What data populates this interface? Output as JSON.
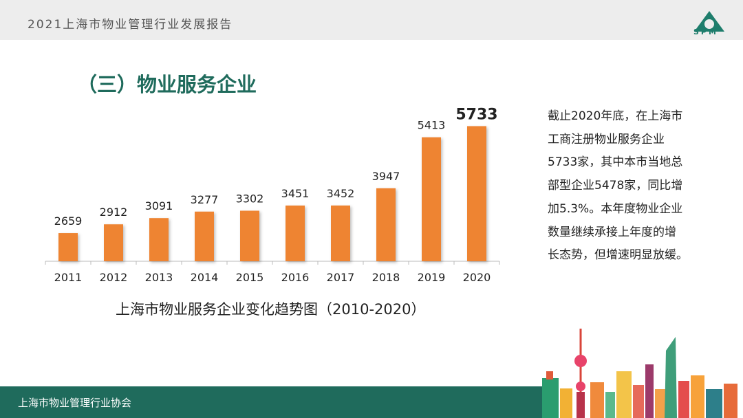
{
  "header": {
    "report_title": "2021上海市物业管理行业发展报告",
    "logo_text": "SPM"
  },
  "section": {
    "title": "（三）物业服务企业"
  },
  "chart_data": {
    "type": "bar",
    "title": "上海市物业服务企业变化趋势图（2010-2020）",
    "categories": [
      "2011",
      "2012",
      "2013",
      "2014",
      "2015",
      "2016",
      "2017",
      "2018",
      "2019",
      "2020"
    ],
    "values": [
      2659,
      2912,
      3091,
      3277,
      3302,
      3451,
      3452,
      3947,
      5413,
      5733
    ],
    "value_labels": [
      "2659",
      "2912",
      "3091",
      "3277",
      "3302",
      "3451",
      "3452",
      "3947",
      "5413",
      "5733"
    ],
    "highlight_index": 9,
    "ylim": [
      1850,
      5900
    ],
    "bar_color": "#ee8432",
    "xlabel": "",
    "ylabel": ""
  },
  "description": [
    "截止2020年底，在上海市",
    "工商注册物业服务企业",
    "5733家，其中本市当地总",
    "部型企业5478家，同比增",
    "加5.3%。本年度物业企业",
    "数量继续承接上年度的增",
    "长态势，但增速明显放缓。"
  ],
  "footer": {
    "org": "上海市物业管理行业协会"
  },
  "colors": {
    "brand": "#1f6b5c",
    "bar": "#ee8432",
    "topbar": "#ededed"
  }
}
